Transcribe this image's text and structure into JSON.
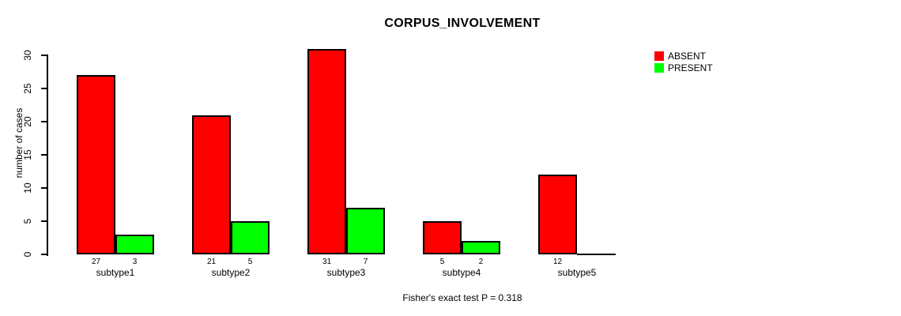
{
  "chart_data": {
    "type": "bar",
    "title": "CORPUS_INVOLVEMENT",
    "ylabel": "number of cases",
    "xlabel": "",
    "categories": [
      "subtype1",
      "subtype2",
      "subtype3",
      "subtype4",
      "subtype5"
    ],
    "series": [
      {
        "name": "ABSENT",
        "color": "#FF0000",
        "values": [
          27,
          21,
          31,
          5,
          12
        ]
      },
      {
        "name": "PRESENT",
        "color": "#00FF00",
        "values": [
          3,
          5,
          7,
          2,
          0
        ]
      }
    ],
    "bar_value_labels": [
      [
        "27",
        "3"
      ],
      [
        "21",
        "5"
      ],
      [
        "31",
        "7"
      ],
      [
        "5",
        "2"
      ],
      [
        "12",
        ""
      ]
    ],
    "ylim": [
      0,
      30
    ],
    "yticks": [
      0,
      5,
      10,
      15,
      20,
      25,
      30
    ],
    "grid": false,
    "legend_position": "top-right",
    "annotation": "Fisher's exact test P = 0.318"
  }
}
